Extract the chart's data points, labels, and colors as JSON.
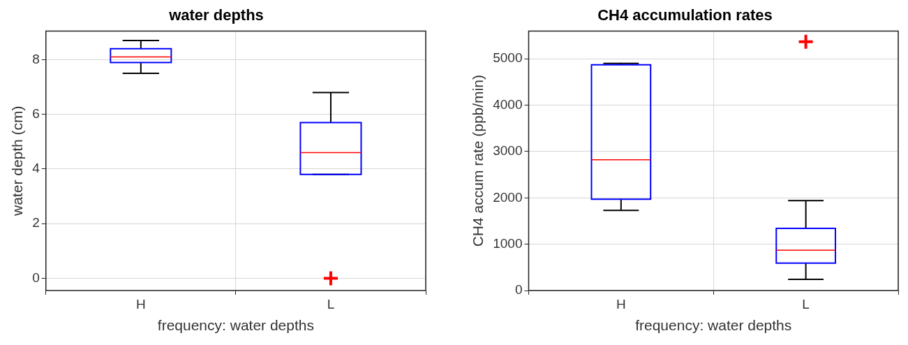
{
  "chart_data": [
    {
      "type": "box",
      "title": "water depths",
      "xlabel": "frequency: water depths",
      "ylabel": "water depth (cm)",
      "categories": [
        "H",
        "L"
      ],
      "ylim": [
        -0.45,
        9.05
      ],
      "yticks": [
        0,
        2,
        4,
        6,
        8
      ],
      "grid": true,
      "marker": "cross",
      "series": [
        {
          "color": "#0000ff",
          "boxes": [
            {
              "low": 7.5,
              "q1": 7.9,
              "median": 8.1,
              "q3": 8.4,
              "high": 8.7
            },
            {
              "low": 3.8,
              "q1": 3.8,
              "median": 4.6,
              "q3": 5.7,
              "high": 6.8
            }
          ]
        },
        {
          "type": "scatter",
          "color": "#ff0000",
          "x": [
            "L"
          ],
          "values": [
            0
          ]
        }
      ]
    },
    {
      "type": "box",
      "title": "CH4 accumulation rates",
      "xlabel": "frequency: water depths",
      "ylabel": "CH4 accum rate (ppb/min)",
      "categories": [
        "H",
        "L"
      ],
      "ylim": [
        0,
        5600
      ],
      "yticks": [
        0,
        1000,
        2000,
        3000,
        4000,
        5000
      ],
      "grid": true,
      "marker": "cross",
      "series": [
        {
          "color": "#0000ff",
          "boxes": [
            {
              "low": 1730,
              "q1": 1970,
              "median": 2820,
              "q3": 4870,
              "high": 4900
            },
            {
              "low": 240,
              "q1": 590,
              "median": 870,
              "q3": 1340,
              "high": 1940
            }
          ]
        },
        {
          "type": "scatter",
          "color": "#ff0000",
          "x": [
            "L"
          ],
          "values": [
            5370
          ]
        }
      ]
    }
  ]
}
